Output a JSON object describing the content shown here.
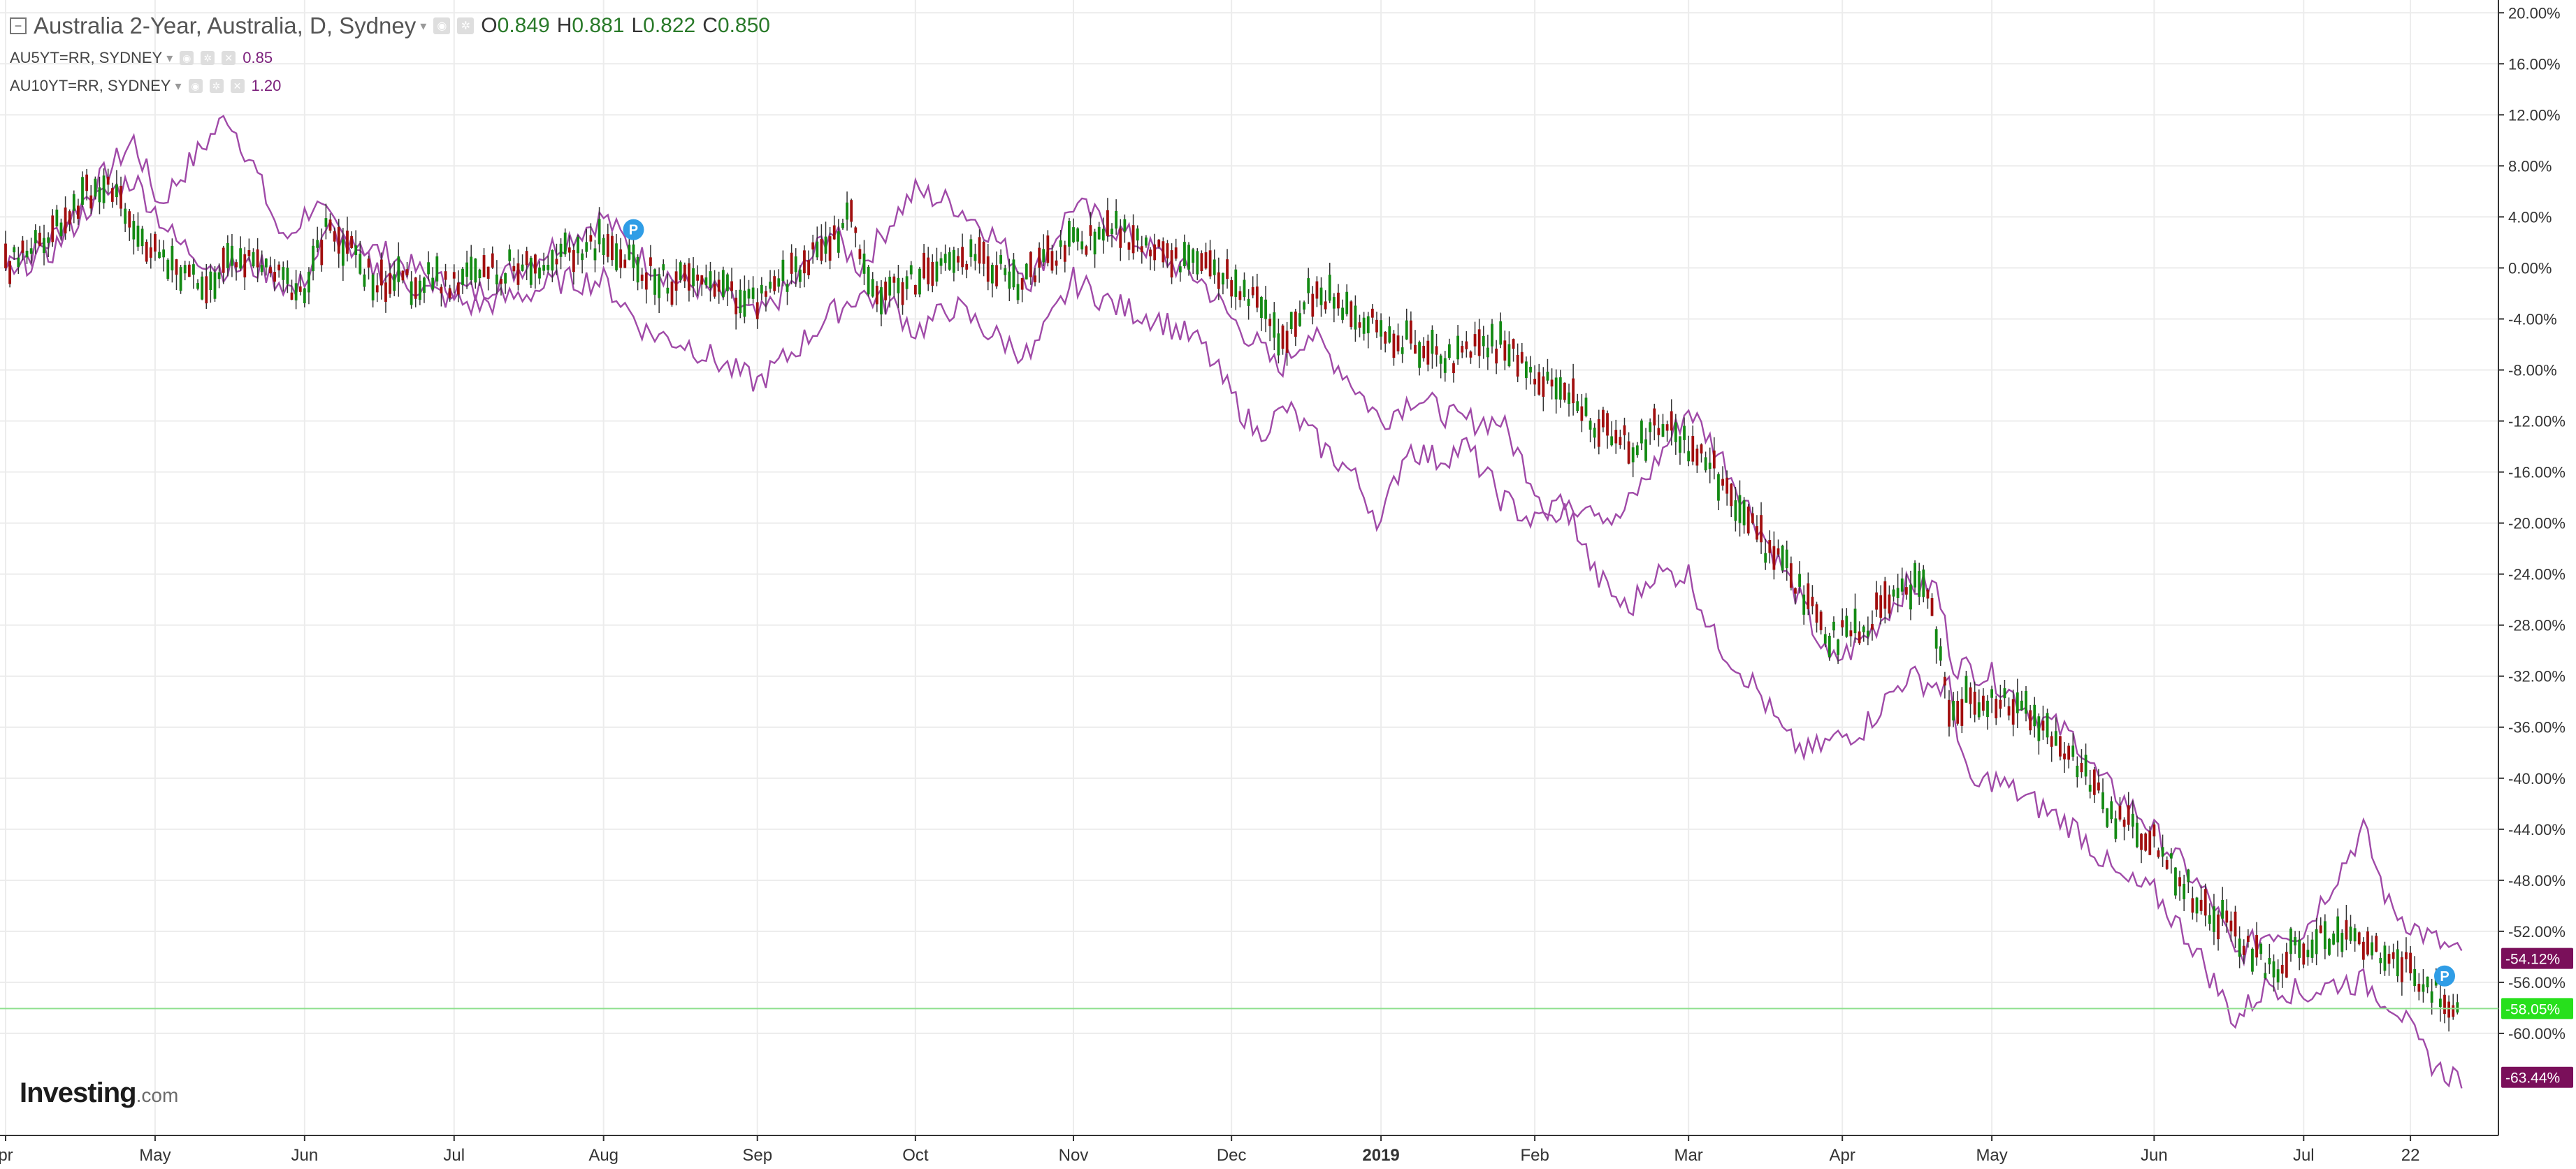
{
  "header": {
    "title": "Australia 2-Year, Australia, D, Sydney",
    "ohlc": [
      {
        "label": "O",
        "value": "0.849"
      },
      {
        "label": "H",
        "value": "0.881"
      },
      {
        "label": "L",
        "value": "0.822"
      },
      {
        "label": "C",
        "value": "0.850"
      }
    ],
    "series_legend": [
      {
        "name": "AU5YT=RR, SYDNEY",
        "value": "0.85"
      },
      {
        "name": "AU10YT=RR, SYDNEY",
        "value": "1.20"
      }
    ]
  },
  "logo": {
    "brand": "Investing",
    "suffix": ".com"
  },
  "chart_data": {
    "type": "candlestick",
    "title": "Australia 2-Year, Australia, D, Sydney",
    "x_ticks": [
      "pr",
      "May",
      "Jun",
      "Jul",
      "Aug",
      "Sep",
      "Oct",
      "Nov",
      "Dec",
      "2019",
      "Feb",
      "Mar",
      "Apr",
      "May",
      "Jun",
      "Jul",
      "22"
    ],
    "x_tick_pos": [
      0,
      35,
      70,
      105,
      140,
      176,
      213,
      250,
      287,
      322,
      358,
      394,
      430,
      465,
      503,
      538,
      563
    ],
    "y_ticks": [
      "20.00%",
      "16.00%",
      "12.00%",
      "8.00%",
      "4.00%",
      "0.00%",
      "-4.00%",
      "-8.00%",
      "-12.00%",
      "-16.00%",
      "-20.00%",
      "-24.00%",
      "-28.00%",
      "-32.00%",
      "-36.00%",
      "-40.00%",
      "-44.00%",
      "-48.00%",
      "-52.00%",
      "-56.00%",
      "-60.00%"
    ],
    "ylim": [
      -68,
      21
    ],
    "x_count": 580,
    "candle_anchors": [
      [
        0,
        0
      ],
      [
        10,
        3
      ],
      [
        20,
        6
      ],
      [
        24,
        7
      ],
      [
        35,
        1
      ],
      [
        48,
        -1
      ],
      [
        55,
        1
      ],
      [
        65,
        -1
      ],
      [
        70,
        -2
      ],
      [
        75,
        3
      ],
      [
        80,
        2
      ],
      [
        86,
        -1
      ],
      [
        95,
        -1
      ],
      [
        105,
        -1
      ],
      [
        118,
        0
      ],
      [
        130,
        1
      ],
      [
        140,
        2
      ],
      [
        147,
        0
      ],
      [
        155,
        -1
      ],
      [
        165,
        -1
      ],
      [
        176,
        -3
      ],
      [
        185,
        0
      ],
      [
        193,
        2
      ],
      [
        198,
        4
      ],
      [
        203,
        -2
      ],
      [
        213,
        -1
      ],
      [
        220,
        0
      ],
      [
        228,
        1
      ],
      [
        237,
        -1
      ],
      [
        250,
        2
      ],
      [
        260,
        3
      ],
      [
        270,
        1
      ],
      [
        280,
        0
      ],
      [
        287,
        -1
      ],
      [
        293,
        -3
      ],
      [
        298,
        -6
      ],
      [
        305,
        -2
      ],
      [
        315,
        -3
      ],
      [
        322,
        -5
      ],
      [
        330,
        -6
      ],
      [
        340,
        -7
      ],
      [
        350,
        -6
      ],
      [
        358,
        -8
      ],
      [
        365,
        -10
      ],
      [
        372,
        -12
      ],
      [
        382,
        -14
      ],
      [
        388,
        -12
      ],
      [
        394,
        -14
      ],
      [
        403,
        -17
      ],
      [
        410,
        -21
      ],
      [
        420,
        -25
      ],
      [
        427,
        -29
      ],
      [
        435,
        -28
      ],
      [
        445,
        -25
      ],
      [
        450,
        -25
      ],
      [
        455,
        -34
      ],
      [
        465,
        -34
      ],
      [
        475,
        -35
      ],
      [
        485,
        -39
      ],
      [
        493,
        -43
      ],
      [
        503,
        -45
      ],
      [
        512,
        -49
      ],
      [
        522,
        -52
      ],
      [
        530,
        -55
      ],
      [
        538,
        -53
      ],
      [
        548,
        -52
      ],
      [
        556,
        -54
      ],
      [
        563,
        -55
      ],
      [
        570,
        -57
      ],
      [
        574,
        -58
      ]
    ],
    "series": [
      {
        "name": "Australia 2-Year",
        "last_value": "-58.05%",
        "color": "#00e000",
        "tag_color": "#27e01c"
      },
      {
        "name": "AU5YT=RR, SYDNEY",
        "last_value": "-54.12%",
        "color": "#a04aa8",
        "tag_color": "#7a0f5a",
        "anchors": [
          [
            0,
            0
          ],
          [
            10,
            2
          ],
          [
            20,
            6
          ],
          [
            30,
            10
          ],
          [
            36,
            5
          ],
          [
            45,
            9
          ],
          [
            52,
            12
          ],
          [
            58,
            8
          ],
          [
            65,
            2
          ],
          [
            72,
            5
          ],
          [
            80,
            2
          ],
          [
            90,
            1
          ],
          [
            100,
            -1
          ],
          [
            110,
            -2
          ],
          [
            120,
            0
          ],
          [
            130,
            2
          ],
          [
            140,
            4
          ],
          [
            148,
            1
          ],
          [
            157,
            -1
          ],
          [
            167,
            -2
          ],
          [
            176,
            -4
          ],
          [
            185,
            -1
          ],
          [
            193,
            3
          ],
          [
            200,
            0
          ],
          [
            208,
            4
          ],
          [
            213,
            6
          ],
          [
            222,
            5
          ],
          [
            230,
            3
          ],
          [
            240,
            -1
          ],
          [
            250,
            5
          ],
          [
            260,
            3
          ],
          [
            270,
            1
          ],
          [
            280,
            -1
          ],
          [
            287,
            -4
          ],
          [
            293,
            -6
          ],
          [
            298,
            -8
          ],
          [
            305,
            -5
          ],
          [
            313,
            -8
          ],
          [
            322,
            -12
          ],
          [
            330,
            -10
          ],
          [
            340,
            -12
          ],
          [
            350,
            -12
          ],
          [
            358,
            -17
          ],
          [
            363,
            -20
          ],
          [
            370,
            -18
          ],
          [
            377,
            -20
          ],
          [
            385,
            -16
          ],
          [
            394,
            -11
          ],
          [
            402,
            -15
          ],
          [
            410,
            -20
          ],
          [
            420,
            -26
          ],
          [
            427,
            -31
          ],
          [
            432,
            -30
          ],
          [
            438,
            -28
          ],
          [
            445,
            -25
          ],
          [
            452,
            -25
          ],
          [
            456,
            -31
          ],
          [
            465,
            -32
          ],
          [
            475,
            -35
          ],
          [
            485,
            -37
          ],
          [
            490,
            -40
          ],
          [
            500,
            -43
          ],
          [
            510,
            -47
          ],
          [
            517,
            -50
          ],
          [
            522,
            -54
          ],
          [
            530,
            -52
          ],
          [
            538,
            -52
          ],
          [
            545,
            -48
          ],
          [
            552,
            -44
          ],
          [
            558,
            -50
          ],
          [
            565,
            -52
          ],
          [
            570,
            -53
          ],
          [
            575,
            -54
          ]
        ]
      },
      {
        "name": "AU10YT=RR, SYDNEY",
        "last_value": "-63.44%",
        "color": "#a04aa8",
        "tag_color": "#7a0f5a",
        "anchors": [
          [
            0,
            0
          ],
          [
            10,
            1
          ],
          [
            20,
            5
          ],
          [
            30,
            7
          ],
          [
            40,
            2
          ],
          [
            50,
            0
          ],
          [
            60,
            0
          ],
          [
            68,
            -2
          ],
          [
            76,
            3
          ],
          [
            86,
            0
          ],
          [
            100,
            -2
          ],
          [
            110,
            -3
          ],
          [
            122,
            -2
          ],
          [
            130,
            -1
          ],
          [
            140,
            -1
          ],
          [
            150,
            -5
          ],
          [
            160,
            -6
          ],
          [
            170,
            -8
          ],
          [
            176,
            -9
          ],
          [
            183,
            -7
          ],
          [
            192,
            -4
          ],
          [
            200,
            -2
          ],
          [
            208,
            -3
          ],
          [
            213,
            -5
          ],
          [
            222,
            -3
          ],
          [
            230,
            -5
          ],
          [
            240,
            -7
          ],
          [
            250,
            -1
          ],
          [
            260,
            -3
          ],
          [
            270,
            -4
          ],
          [
            280,
            -6
          ],
          [
            287,
            -10
          ],
          [
            293,
            -13
          ],
          [
            300,
            -11
          ],
          [
            308,
            -14
          ],
          [
            315,
            -16
          ],
          [
            322,
            -20
          ],
          [
            328,
            -14
          ],
          [
            335,
            -15
          ],
          [
            342,
            -14
          ],
          [
            350,
            -18
          ],
          [
            358,
            -20
          ],
          [
            365,
            -18
          ],
          [
            372,
            -24
          ],
          [
            380,
            -27
          ],
          [
            385,
            -24
          ],
          [
            394,
            -24
          ],
          [
            400,
            -29
          ],
          [
            410,
            -33
          ],
          [
            417,
            -37
          ],
          [
            422,
            -38
          ],
          [
            428,
            -37
          ],
          [
            435,
            -36
          ],
          [
            445,
            -32
          ],
          [
            455,
            -33
          ],
          [
            460,
            -41
          ],
          [
            465,
            -40
          ],
          [
            475,
            -42
          ],
          [
            485,
            -44
          ],
          [
            495,
            -48
          ],
          [
            503,
            -49
          ],
          [
            512,
            -53
          ],
          [
            522,
            -59
          ],
          [
            530,
            -56
          ],
          [
            538,
            -57
          ],
          [
            546,
            -56
          ],
          [
            552,
            -56
          ],
          [
            560,
            -58
          ],
          [
            565,
            -61
          ],
          [
            570,
            -63
          ],
          [
            575,
            -63.44
          ]
        ]
      }
    ],
    "markers": [
      {
        "label": "P",
        "x": 147,
        "y": 3
      },
      {
        "label": "P",
        "x": 571,
        "y": -55.5
      }
    ],
    "price_line": -58.05,
    "grid": true
  }
}
